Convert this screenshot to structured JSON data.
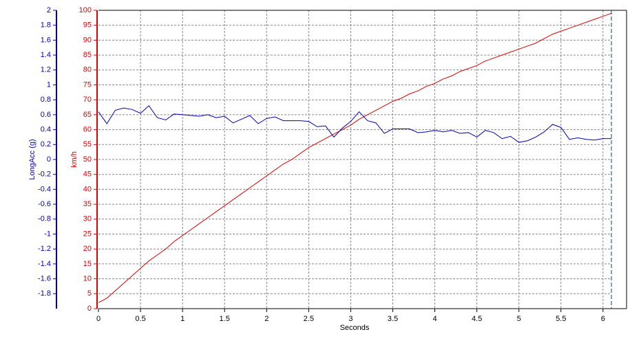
{
  "chart_data": {
    "type": "line",
    "xlabel": "Seconds",
    "ylabel": "km/h",
    "y2label": "LongAcc (g)",
    "x": [
      0,
      0.1,
      0.2,
      0.3,
      0.4,
      0.5,
      0.6,
      0.7,
      0.8,
      0.9,
      1.0,
      1.1,
      1.2,
      1.3,
      1.4,
      1.5,
      1.6,
      1.7,
      1.8,
      1.9,
      2.0,
      2.1,
      2.2,
      2.3,
      2.4,
      2.5,
      2.6,
      2.7,
      2.8,
      2.9,
      3.0,
      3.1,
      3.2,
      3.3,
      3.4,
      3.5,
      3.6,
      3.7,
      3.8,
      3.9,
      4.0,
      4.1,
      4.2,
      4.3,
      4.4,
      4.5,
      4.6,
      4.7,
      4.8,
      4.9,
      5.0,
      5.1,
      5.2,
      5.3,
      5.4,
      5.5,
      5.6,
      5.7,
      5.8,
      5.9,
      6.0,
      6.1
    ],
    "series": [
      {
        "color": "#e00000",
        "values": [
          2,
          3.5,
          6,
          8.5,
          11,
          13.5,
          16,
          18,
          20,
          22.5,
          24.5,
          26.5,
          28.5,
          30.5,
          32.5,
          34.5,
          36.5,
          38.5,
          40.5,
          42.5,
          44.5,
          46.5,
          48.5,
          50,
          52,
          54,
          55.5,
          57,
          58.5,
          60,
          61.5,
          63.5,
          65,
          66.5,
          68,
          69.5,
          70.5,
          72,
          73,
          74.5,
          75.5,
          77,
          78,
          79.5,
          80.5,
          81.5,
          83,
          84,
          85,
          86,
          87,
          88,
          89,
          90.5,
          92,
          93,
          94,
          95,
          96,
          97,
          98,
          99
        ]
      },
      {
        "color": "#0000c0",
        "axis": "y2",
        "values": [
          0.64,
          0.48,
          0.66,
          0.69,
          0.67,
          0.62,
          0.72,
          0.56,
          0.53,
          0.61,
          0.6,
          0.59,
          0.58,
          0.6,
          0.56,
          0.58,
          0.49,
          0.54,
          0.59,
          0.48,
          0.55,
          0.57,
          0.52,
          0.52,
          0.52,
          0.51,
          0.44,
          0.45,
          0.3,
          0.42,
          0.51,
          0.64,
          0.52,
          0.49,
          0.35,
          0.41,
          0.41,
          0.41,
          0.36,
          0.37,
          0.39,
          0.37,
          0.39,
          0.35,
          0.36,
          0.3,
          0.39,
          0.36,
          0.28,
          0.31,
          0.23,
          0.25,
          0.3,
          0.37,
          0.47,
          0.43,
          0.27,
          0.29,
          0.27,
          0.26,
          0.28,
          0.28
        ]
      }
    ],
    "xlim": [
      0,
      6.1
    ],
    "xticks": [
      0,
      0.5,
      1,
      1.5,
      2,
      2.5,
      3,
      3.5,
      4,
      4.5,
      5,
      5.5,
      6
    ],
    "ylim": [
      0,
      100
    ],
    "yticks": [
      0,
      5,
      10,
      15,
      20,
      25,
      30,
      35,
      40,
      45,
      50,
      55,
      60,
      65,
      70,
      75,
      80,
      85,
      90,
      95,
      100
    ],
    "y2lim": [
      -2,
      2
    ],
    "y2ticks": [
      -1.8,
      -1.6,
      -1.4,
      -1.2,
      -1,
      -0.8,
      -0.6,
      -0.4,
      -0.2,
      0,
      0.2,
      0.4,
      0.6,
      0.8,
      1,
      1.2,
      1.4,
      1.6,
      1.8,
      2
    ],
    "grid": true
  }
}
